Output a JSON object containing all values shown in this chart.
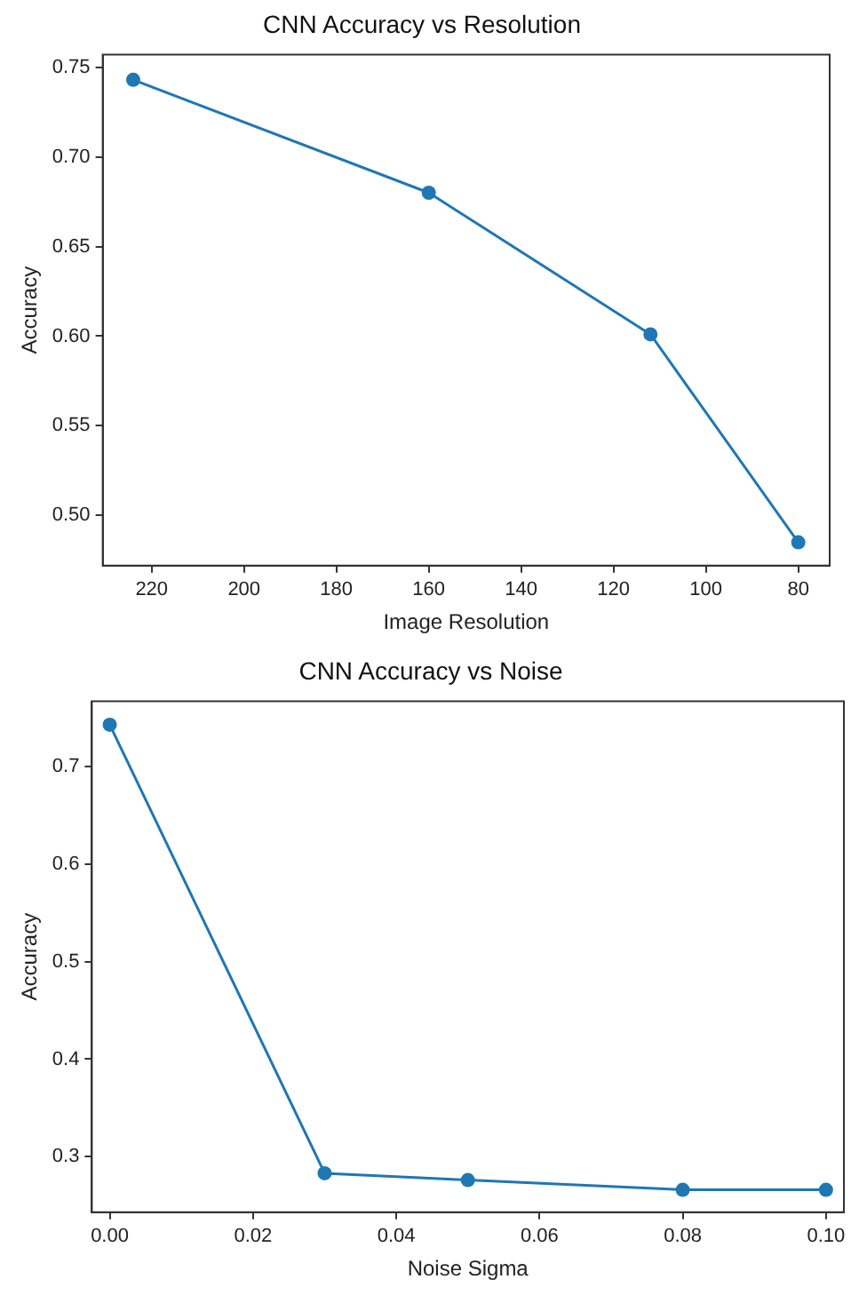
{
  "chart_data": [
    {
      "type": "line",
      "title": "CNN Accuracy vs Resolution",
      "xlabel": "Image Resolution",
      "ylabel": "Accuracy",
      "x": [
        224,
        160,
        112,
        80
      ],
      "series": [
        {
          "color": "#1f77b4",
          "values": [
            0.743,
            0.68,
            0.601,
            0.485
          ]
        }
      ],
      "xlim": [
        230.6,
        73.2
      ],
      "xticks": [
        220,
        200,
        180,
        160,
        140,
        120,
        100,
        80
      ],
      "ylim": [
        0.472,
        0.757
      ],
      "yticks": [
        {
          "value": 0.5,
          "label": "0.50"
        },
        0.55,
        {
          "value": 0.6,
          "label": "0.60"
        },
        0.65,
        {
          "value": 0.7,
          "label": "0.70"
        },
        0.75
      ],
      "grid": false,
      "legend": false,
      "marker": "circle",
      "line_style": "solid"
    },
    {
      "type": "line",
      "title": "CNN Accuracy vs Noise",
      "xlabel": "Noise Sigma",
      "ylabel": "Accuracy",
      "x": [
        0,
        0.03,
        0.05,
        0.08,
        0.1
      ],
      "series": [
        {
          "color": "#1f77b4",
          "values": [
            0.743,
            0.283,
            0.276,
            0.266,
            0.266
          ]
        }
      ],
      "xlim": [
        -0.0025,
        0.1025
      ],
      "xticks": [
        {
          "value": 0,
          "label": "0.00"
        },
        0.02,
        0.04,
        0.06,
        0.08,
        {
          "value": 0.1,
          "label": "0.10"
        }
      ],
      "ylim": [
        0.243,
        0.767
      ],
      "yticks": [
        0.3,
        0.4,
        0.5,
        0.6,
        0.7
      ],
      "grid": false,
      "legend": false,
      "marker": "circle",
      "line_style": "solid"
    }
  ]
}
